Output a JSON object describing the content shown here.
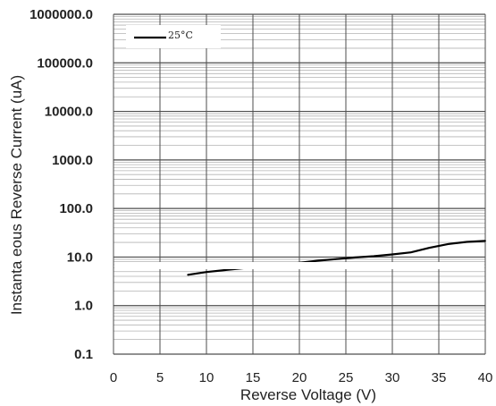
{
  "chart_data": {
    "type": "line",
    "xlabel": "Reverse Voltage (V)",
    "ylabel": "Instanta  eous Reverse Current (uA)",
    "x_ticks": [
      "0",
      "5",
      "10",
      "15",
      "20",
      "25",
      "30",
      "35",
      "40"
    ],
    "y_ticks": [
      "1000000.0",
      "100000.0",
      "10000.0",
      "1000.0",
      "100.0",
      "10.0",
      "1.0",
      "0.1"
    ],
    "xlim": [
      0,
      40
    ],
    "ylim": [
      0.1,
      1000000
    ],
    "y_scale": "log",
    "grid": true,
    "legend_position": "top-left",
    "series": [
      {
        "name": "25°C",
        "color": "#000000",
        "x": [
          8,
          10,
          12,
          14,
          16,
          18,
          20,
          22,
          24,
          26,
          28,
          30,
          32,
          34,
          36,
          38,
          40
        ],
        "y": [
          4.3,
          4.9,
          5.4,
          5.9,
          6.4,
          7.0,
          7.6,
          8.4,
          9.1,
          9.8,
          10.4,
          11.3,
          12.5,
          15.5,
          18.5,
          20.5,
          21.5
        ]
      }
    ]
  }
}
